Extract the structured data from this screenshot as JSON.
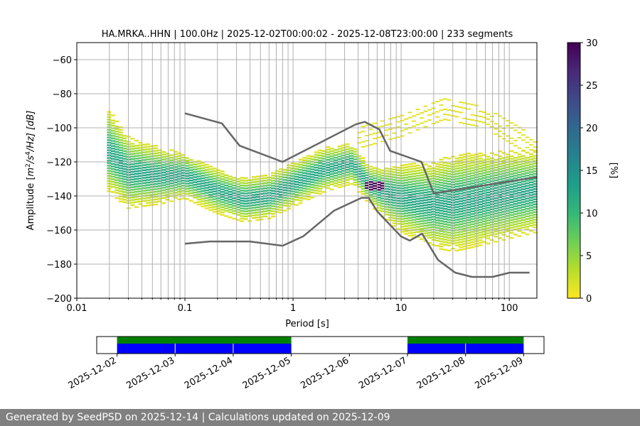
{
  "chart_data": [
    {
      "type": "heatmap",
      "title": "HA.MRKA..HHN | 100.0Hz | 2025-12-02T00:00:02 - 2025-12-08T23:00:00 | 233 segments",
      "xlabel": "Period [s]",
      "ylabel_parts": {
        "pre": "Amplitude [",
        "m": "m",
        "two": "2",
        "slash1": "/",
        "s": "s",
        "four": "4",
        "slash2": "/Hz] [dB]"
      },
      "x_scale": "log",
      "xlim": [
        0.01,
        180
      ],
      "ylim": [
        -200,
        -50
      ],
      "xticks": [
        {
          "value": 0.01,
          "label": "0.01"
        },
        {
          "value": 0.1,
          "label": "0.1"
        },
        {
          "value": 1,
          "label": "1"
        },
        {
          "value": 10,
          "label": "10"
        },
        {
          "value": 100,
          "label": "100"
        }
      ],
      "yticks": [
        {
          "value": -200,
          "label": "−200"
        },
        {
          "value": -180,
          "label": "−180"
        },
        {
          "value": -160,
          "label": "−160"
        },
        {
          "value": -140,
          "label": "−140"
        },
        {
          "value": -120,
          "label": "−120"
        },
        {
          "value": -100,
          "label": "−100"
        },
        {
          "value": -80,
          "label": "−80"
        },
        {
          "value": -60,
          "label": "−60"
        }
      ],
      "grid": true,
      "colorbar": {
        "label": "[%]",
        "range": [
          0,
          30
        ],
        "ticks": [
          {
            "value": 0,
            "label": "0"
          },
          {
            "value": 5,
            "label": "5"
          },
          {
            "value": 10,
            "label": "10"
          },
          {
            "value": 15,
            "label": "15"
          },
          {
            "value": 20,
            "label": "20"
          },
          {
            "value": 25,
            "label": "25"
          },
          {
            "value": 30,
            "label": "30"
          }
        ],
        "colormap": [
          "#440154",
          "#482878",
          "#3e4989",
          "#31688e",
          "#26828e",
          "#1f9e89",
          "#35b779",
          "#6ece58",
          "#b5de2b",
          "#fde725"
        ]
      },
      "psd_median": [
        [
          0.019,
          -112
        ],
        [
          0.03,
          -126
        ],
        [
          0.06,
          -128
        ],
        [
          0.1,
          -128
        ],
        [
          0.2,
          -137
        ],
        [
          0.35,
          -142
        ],
        [
          0.6,
          -140
        ],
        [
          1.0,
          -133
        ],
        [
          2.0,
          -124
        ],
        [
          3.5,
          -121
        ],
        [
          5.0,
          -133
        ],
        [
          6.5,
          -137
        ],
        [
          10,
          -141
        ],
        [
          20,
          -145
        ],
        [
          40,
          -143
        ],
        [
          80,
          -140
        ],
        [
          180,
          -137
        ]
      ],
      "psd_spread_db": [
        [
          0.019,
          11
        ],
        [
          0.1,
          6
        ],
        [
          0.5,
          6
        ],
        [
          2.0,
          6
        ],
        [
          5.0,
          5
        ],
        [
          10,
          9
        ],
        [
          30,
          13
        ],
        [
          80,
          12
        ],
        [
          180,
          11
        ]
      ],
      "psd_peak": {
        "period_range": [
          4.5,
          7.0
        ],
        "db": -134,
        "percent": 30
      },
      "microseism_secondary": [
        [
          4,
          -112
        ],
        [
          10,
          -105
        ],
        [
          25,
          -95
        ],
        [
          60,
          -100
        ],
        [
          180,
          -118
        ]
      ],
      "series": [
        {
          "name": "NHNM",
          "x": [
            0.1,
            0.22,
            0.32,
            0.8,
            3.8,
            4.6,
            6.3,
            7.9,
            15.4,
            20,
            354
          ],
          "y": [
            -91.5,
            -97.4,
            -110.5,
            -120,
            -98,
            -96.5,
            -101,
            -113.5,
            -120,
            -138.5,
            -126
          ]
        },
        {
          "name": "NLNM",
          "x": [
            0.1,
            0.17,
            0.4,
            0.8,
            1.24,
            2.4,
            4.3,
            5,
            6,
            10,
            12,
            15.6,
            21.9,
            31.6,
            45,
            70,
            101,
            154
          ],
          "y": [
            -168,
            -166.7,
            -166.7,
            -169.2,
            -163.7,
            -148.6,
            -141.1,
            -141.1,
            -149,
            -163.8,
            -166.2,
            -162.1,
            -177.5,
            -185,
            -187.5,
            -187.5,
            -185,
            -185
          ]
        }
      ]
    },
    {
      "type": "timeline",
      "date_ticks": [
        "2025-12-02",
        "2025-12-03",
        "2025-12-04",
        "2025-12-05",
        "2025-12-06",
        "2025-12-07",
        "2025-12-08",
        "2025-12-09"
      ],
      "range_days": [
        -0.35,
        7.35
      ],
      "available_days": [
        [
          0,
          3
        ],
        [
          5,
          7
        ]
      ],
      "day_dividers": [
        1,
        2,
        6
      ],
      "colors": {
        "available": "#0000ff",
        "processed": "#008000",
        "empty": "#ffffff"
      }
    }
  ],
  "footer": {
    "text": "Generated by SeedPSD on 2025-12-14 | Calculations updated on 2025-12-09"
  },
  "colors": {
    "reference_curve": "#666666",
    "grid": "#b0b0b0",
    "footer_bg": "#808080"
  }
}
